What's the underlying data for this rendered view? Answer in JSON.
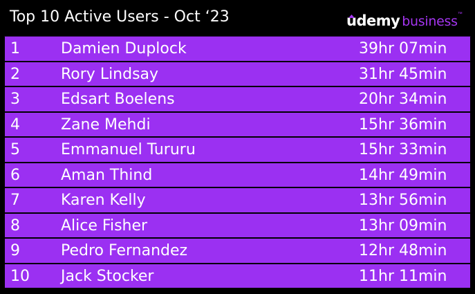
{
  "header": {
    "title": "Top 10 Active Users - Oct ‘23",
    "logo_brand": "udemy",
    "logo_sub": "business",
    "logo_tm": "™"
  },
  "colors": {
    "background": "#000000",
    "row_fill": "#9b30f2",
    "accent": "#a435f0",
    "text": "#ffffff"
  },
  "rows": [
    {
      "rank": "1",
      "name": "Damien Duplock",
      "time": "39hr 07min"
    },
    {
      "rank": "2",
      "name": "Rory Lindsay",
      "time": "31hr 45min"
    },
    {
      "rank": "3",
      "name": "Edsart Boelens",
      "time": "20hr 34min"
    },
    {
      "rank": "4",
      "name": "Zane Mehdi",
      "time": "15hr 36min"
    },
    {
      "rank": "5",
      "name": "Emmanuel Tururu",
      "time": "15hr 33min"
    },
    {
      "rank": "6",
      "name": "Aman Thind",
      "time": "14hr 49min"
    },
    {
      "rank": "7",
      "name": "Karen Kelly",
      "time": "13hr 56min"
    },
    {
      "rank": "8",
      "name": "Alice Fisher",
      "time": "13hr 09min"
    },
    {
      "rank": "9",
      "name": "Pedro Fernandez",
      "time": "12hr 48min"
    },
    {
      "rank": "10",
      "name": "Jack Stocker",
      "time": "11hr 11min"
    }
  ]
}
